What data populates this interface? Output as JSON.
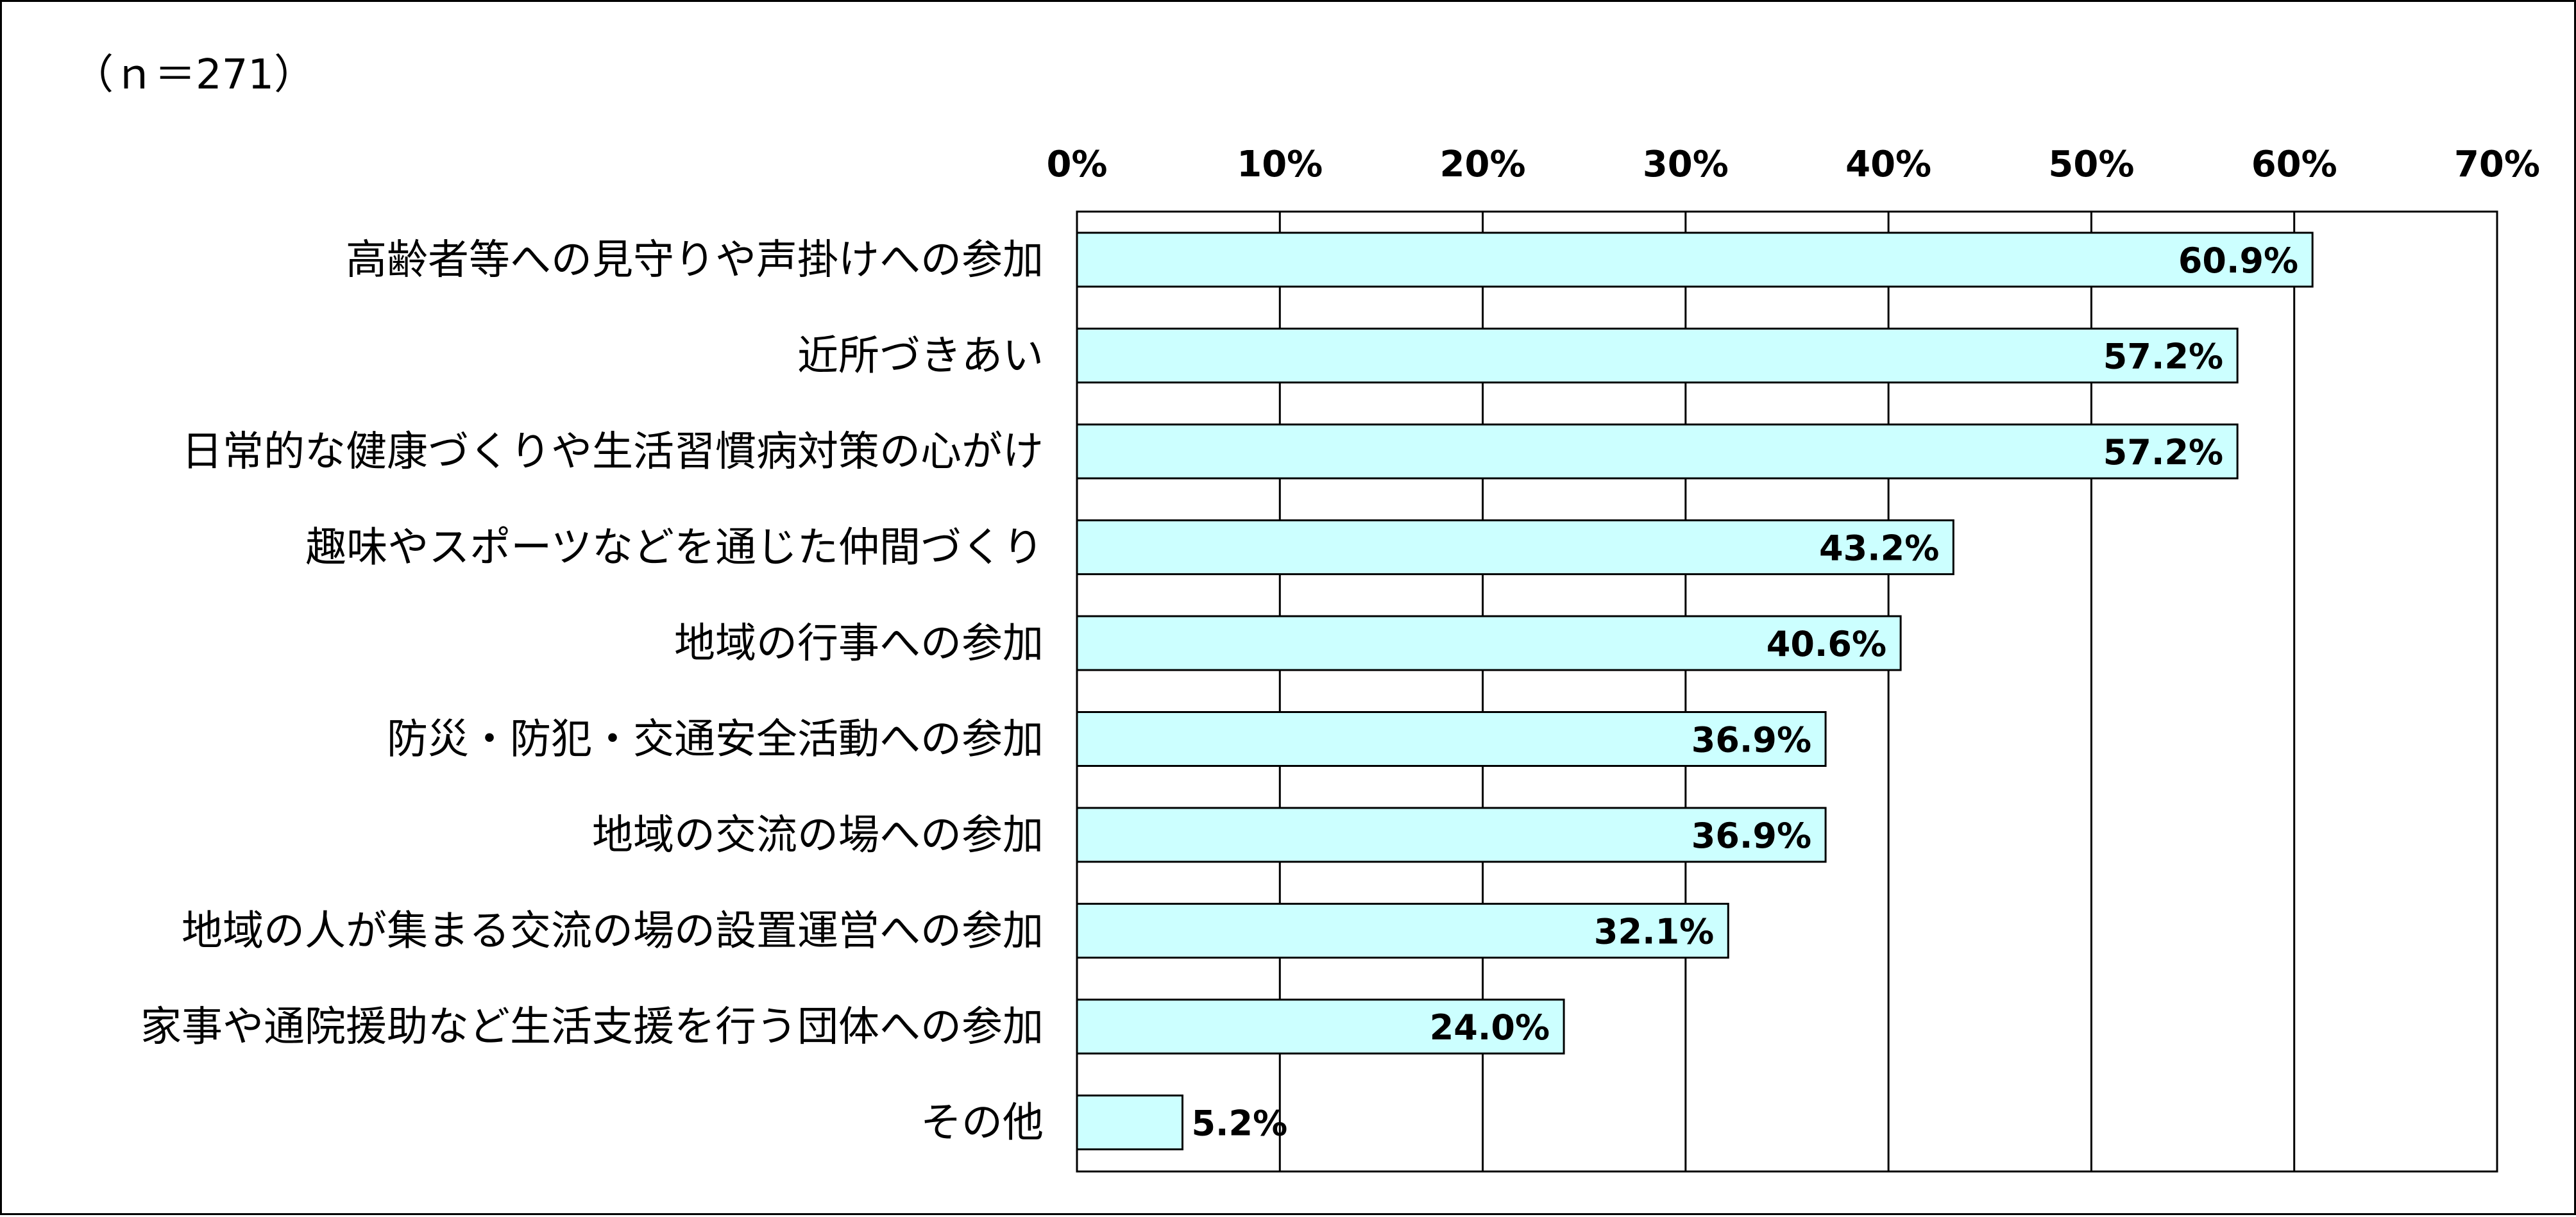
{
  "sample_note": "（ｎ＝271）",
  "chart_data": {
    "type": "bar",
    "orientation": "horizontal",
    "title": "",
    "xlabel": "",
    "ylabel": "",
    "xlim": [
      0,
      70
    ],
    "tick_step": 10,
    "ticks": [
      "0%",
      "10%",
      "20%",
      "30%",
      "40%",
      "50%",
      "60%",
      "70%"
    ],
    "grid": true,
    "legend": "none",
    "categories": [
      "高齢者等への見守りや声掛けへの参加",
      "近所づきあい",
      "日常的な健康づくりや生活習慣病対策の心がけ",
      "趣味やスポーツなどを通じた仲間づくり",
      "地域の行事への参加",
      "防災・防犯・交通安全活動への参加",
      "地域の交流の場への参加",
      "地域の人が集まる交流の場の設置運営への参加",
      "家事や通院援助など生活支援を行う団体への参加",
      "その他"
    ],
    "values": [
      60.9,
      57.2,
      57.2,
      43.2,
      40.6,
      36.9,
      36.9,
      32.1,
      24.0,
      5.2
    ],
    "value_labels": [
      "60.9%",
      "57.2%",
      "57.2%",
      "43.2%",
      "40.6%",
      "36.9%",
      "36.9%",
      "32.1%",
      "24.0%",
      "5.2%"
    ],
    "bar_color": "#ccffff",
    "bar_stroke": "#000000",
    "grid_color": "#000000"
  }
}
